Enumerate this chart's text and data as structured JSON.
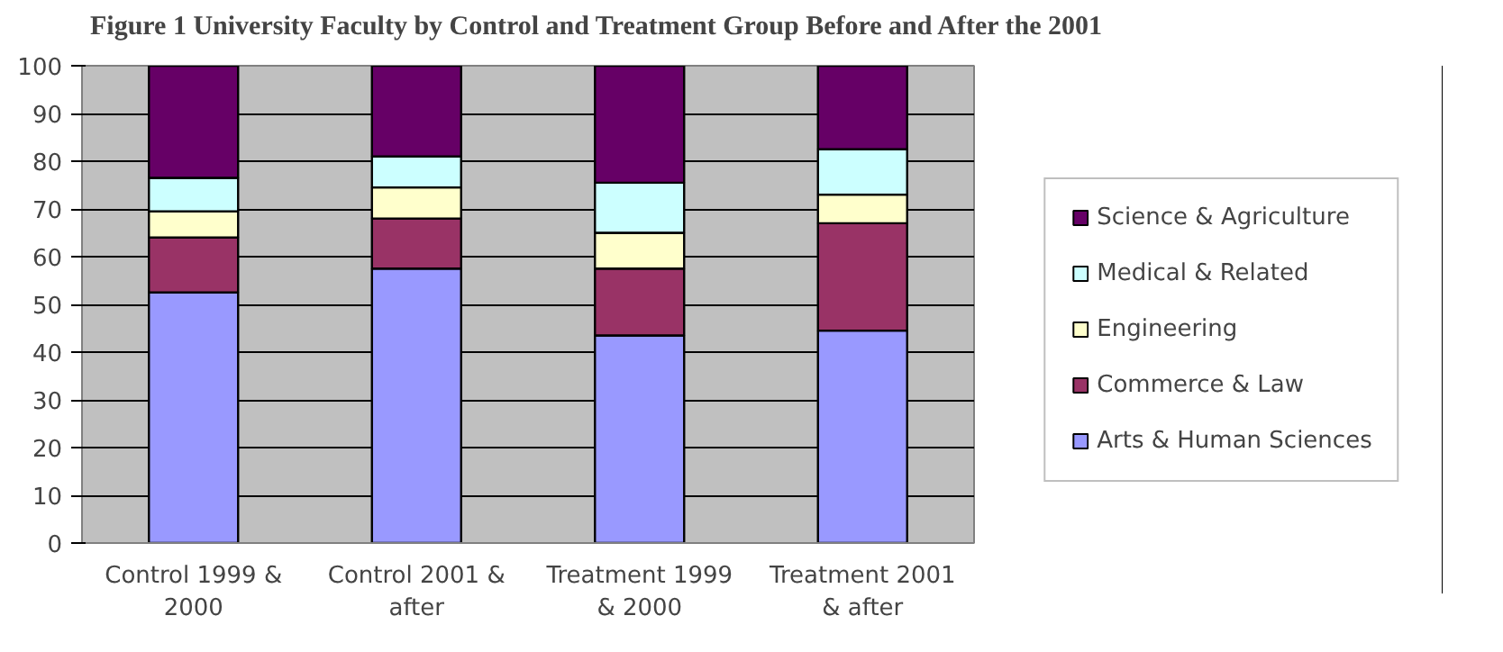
{
  "chart_data": {
    "type": "bar",
    "stacked": true,
    "title": "Figure 1 University Faculty by Control and Treatment Group Before and After the 2001",
    "categories": [
      "Control 1999 & 2000",
      "Control 2001 & after",
      "Treatment 1999 & 2000",
      "Treatment 2001 & after"
    ],
    "series": [
      {
        "name": "Arts & Human Sciences",
        "color": "#9999ff",
        "values": [
          52.5,
          57.5,
          43.5,
          44.5
        ]
      },
      {
        "name": "Commerce & Law",
        "color": "#993366",
        "values": [
          11.5,
          10.5,
          14,
          22.5
        ]
      },
      {
        "name": "Engineering",
        "color": "#ffffcc",
        "values": [
          5.5,
          6.5,
          7.5,
          6
        ]
      },
      {
        "name": "Medical & Related",
        "color": "#ccffff",
        "values": [
          7,
          6.5,
          10.5,
          9.5
        ]
      },
      {
        "name": "Science & Agriculture",
        "color": "#660066",
        "values": [
          23.5,
          19,
          24.5,
          17.5
        ]
      }
    ],
    "ylim": [
      0,
      100
    ],
    "yticks": [
      0,
      10,
      20,
      30,
      40,
      50,
      60,
      70,
      80,
      90,
      100
    ],
    "grid": "y",
    "legend": "right"
  }
}
